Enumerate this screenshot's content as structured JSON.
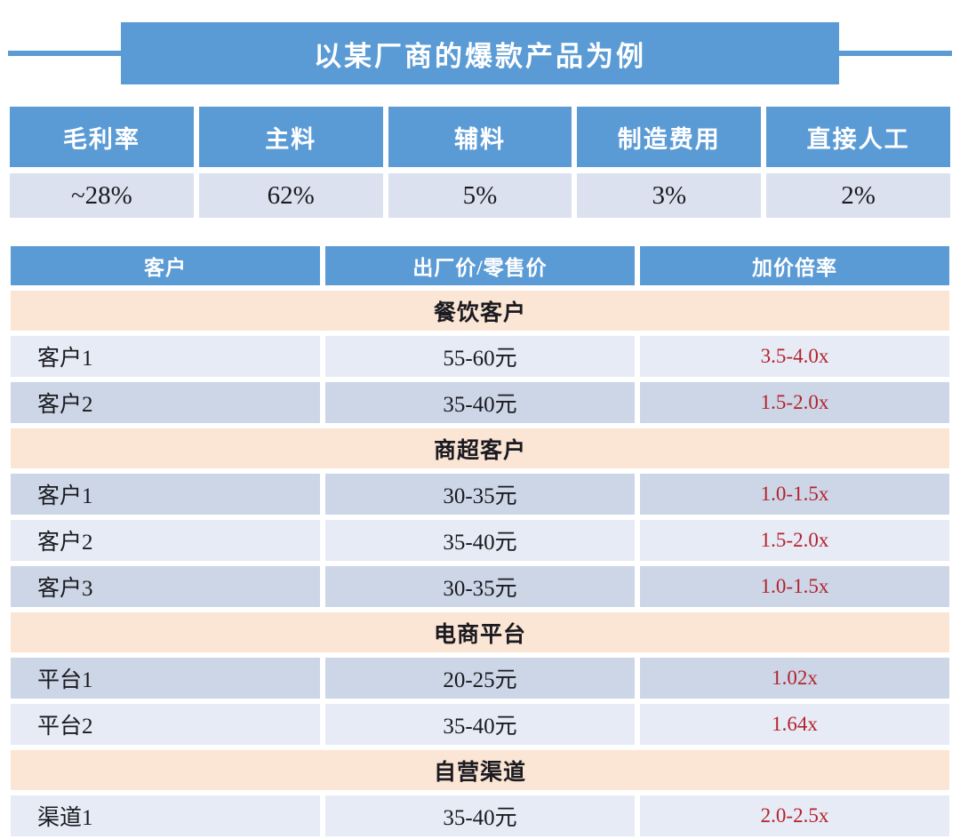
{
  "title": "以某厂商的爆款产品为例",
  "colors": {
    "accent_blue": "#5b9bd5",
    "section_peach": "#fbe5d5",
    "row_light": "#e7ebf5",
    "row_dark": "#ccd6e6",
    "cost_value_bg": "#dce1ef",
    "markup_red": "#b3232e"
  },
  "cost_table": {
    "headers": [
      "毛利率",
      "主料",
      "辅料",
      "制造费用",
      "直接人工"
    ],
    "values": [
      "~28%",
      "62%",
      "5%",
      "3%",
      "2%"
    ]
  },
  "pricing_table": {
    "headers": [
      "客户",
      "出厂价/零售价",
      "加价倍率"
    ],
    "rows": [
      {
        "type": "section",
        "label": "餐饮客户"
      },
      {
        "type": "data",
        "customer": "客户1",
        "price": "55-60元",
        "markup": "3.5-4.0x"
      },
      {
        "type": "data",
        "customer": "客户2",
        "price": "35-40元",
        "markup": "1.5-2.0x"
      },
      {
        "type": "section",
        "label": "商超客户"
      },
      {
        "type": "data",
        "customer": "客户1",
        "price": "30-35元",
        "markup": "1.0-1.5x"
      },
      {
        "type": "data",
        "customer": "客户2",
        "price": "35-40元",
        "markup": "1.5-2.0x"
      },
      {
        "type": "data",
        "customer": "客户3",
        "price": "30-35元",
        "markup": "1.0-1.5x"
      },
      {
        "type": "section",
        "label": "电商平台"
      },
      {
        "type": "data",
        "customer": "平台1",
        "price": "20-25元",
        "markup": "1.02x"
      },
      {
        "type": "data",
        "customer": "平台2",
        "price": "35-40元",
        "markup": "1.64x"
      },
      {
        "type": "section",
        "label": "自营渠道"
      },
      {
        "type": "data",
        "customer": "渠道1",
        "price": "35-40元",
        "markup": "2.0-2.5x"
      }
    ]
  },
  "chart_data": [
    {
      "type": "table",
      "title": "以某厂商的爆款产品为例",
      "columns": [
        "毛利率",
        "主料",
        "辅料",
        "制造费用",
        "直接人工"
      ],
      "rows": [
        [
          "~28%",
          "62%",
          "5%",
          "3%",
          "2%"
        ]
      ]
    },
    {
      "type": "table",
      "columns": [
        "客户",
        "出厂价/零售价",
        "加价倍率"
      ],
      "section_groups": [
        {
          "section": "餐饮客户",
          "rows": [
            [
              "客户1",
              "55-60元",
              "3.5-4.0x"
            ],
            [
              "客户2",
              "35-40元",
              "1.5-2.0x"
            ]
          ]
        },
        {
          "section": "商超客户",
          "rows": [
            [
              "客户1",
              "30-35元",
              "1.0-1.5x"
            ],
            [
              "客户2",
              "35-40元",
              "1.5-2.0x"
            ],
            [
              "客户3",
              "30-35元",
              "1.0-1.5x"
            ]
          ]
        },
        {
          "section": "电商平台",
          "rows": [
            [
              "平台1",
              "20-25元",
              "1.02x"
            ],
            [
              "平台2",
              "35-40元",
              "1.64x"
            ]
          ]
        },
        {
          "section": "自营渠道",
          "rows": [
            [
              "渠道1",
              "35-40元",
              "2.0-2.5x"
            ]
          ]
        }
      ]
    }
  ]
}
